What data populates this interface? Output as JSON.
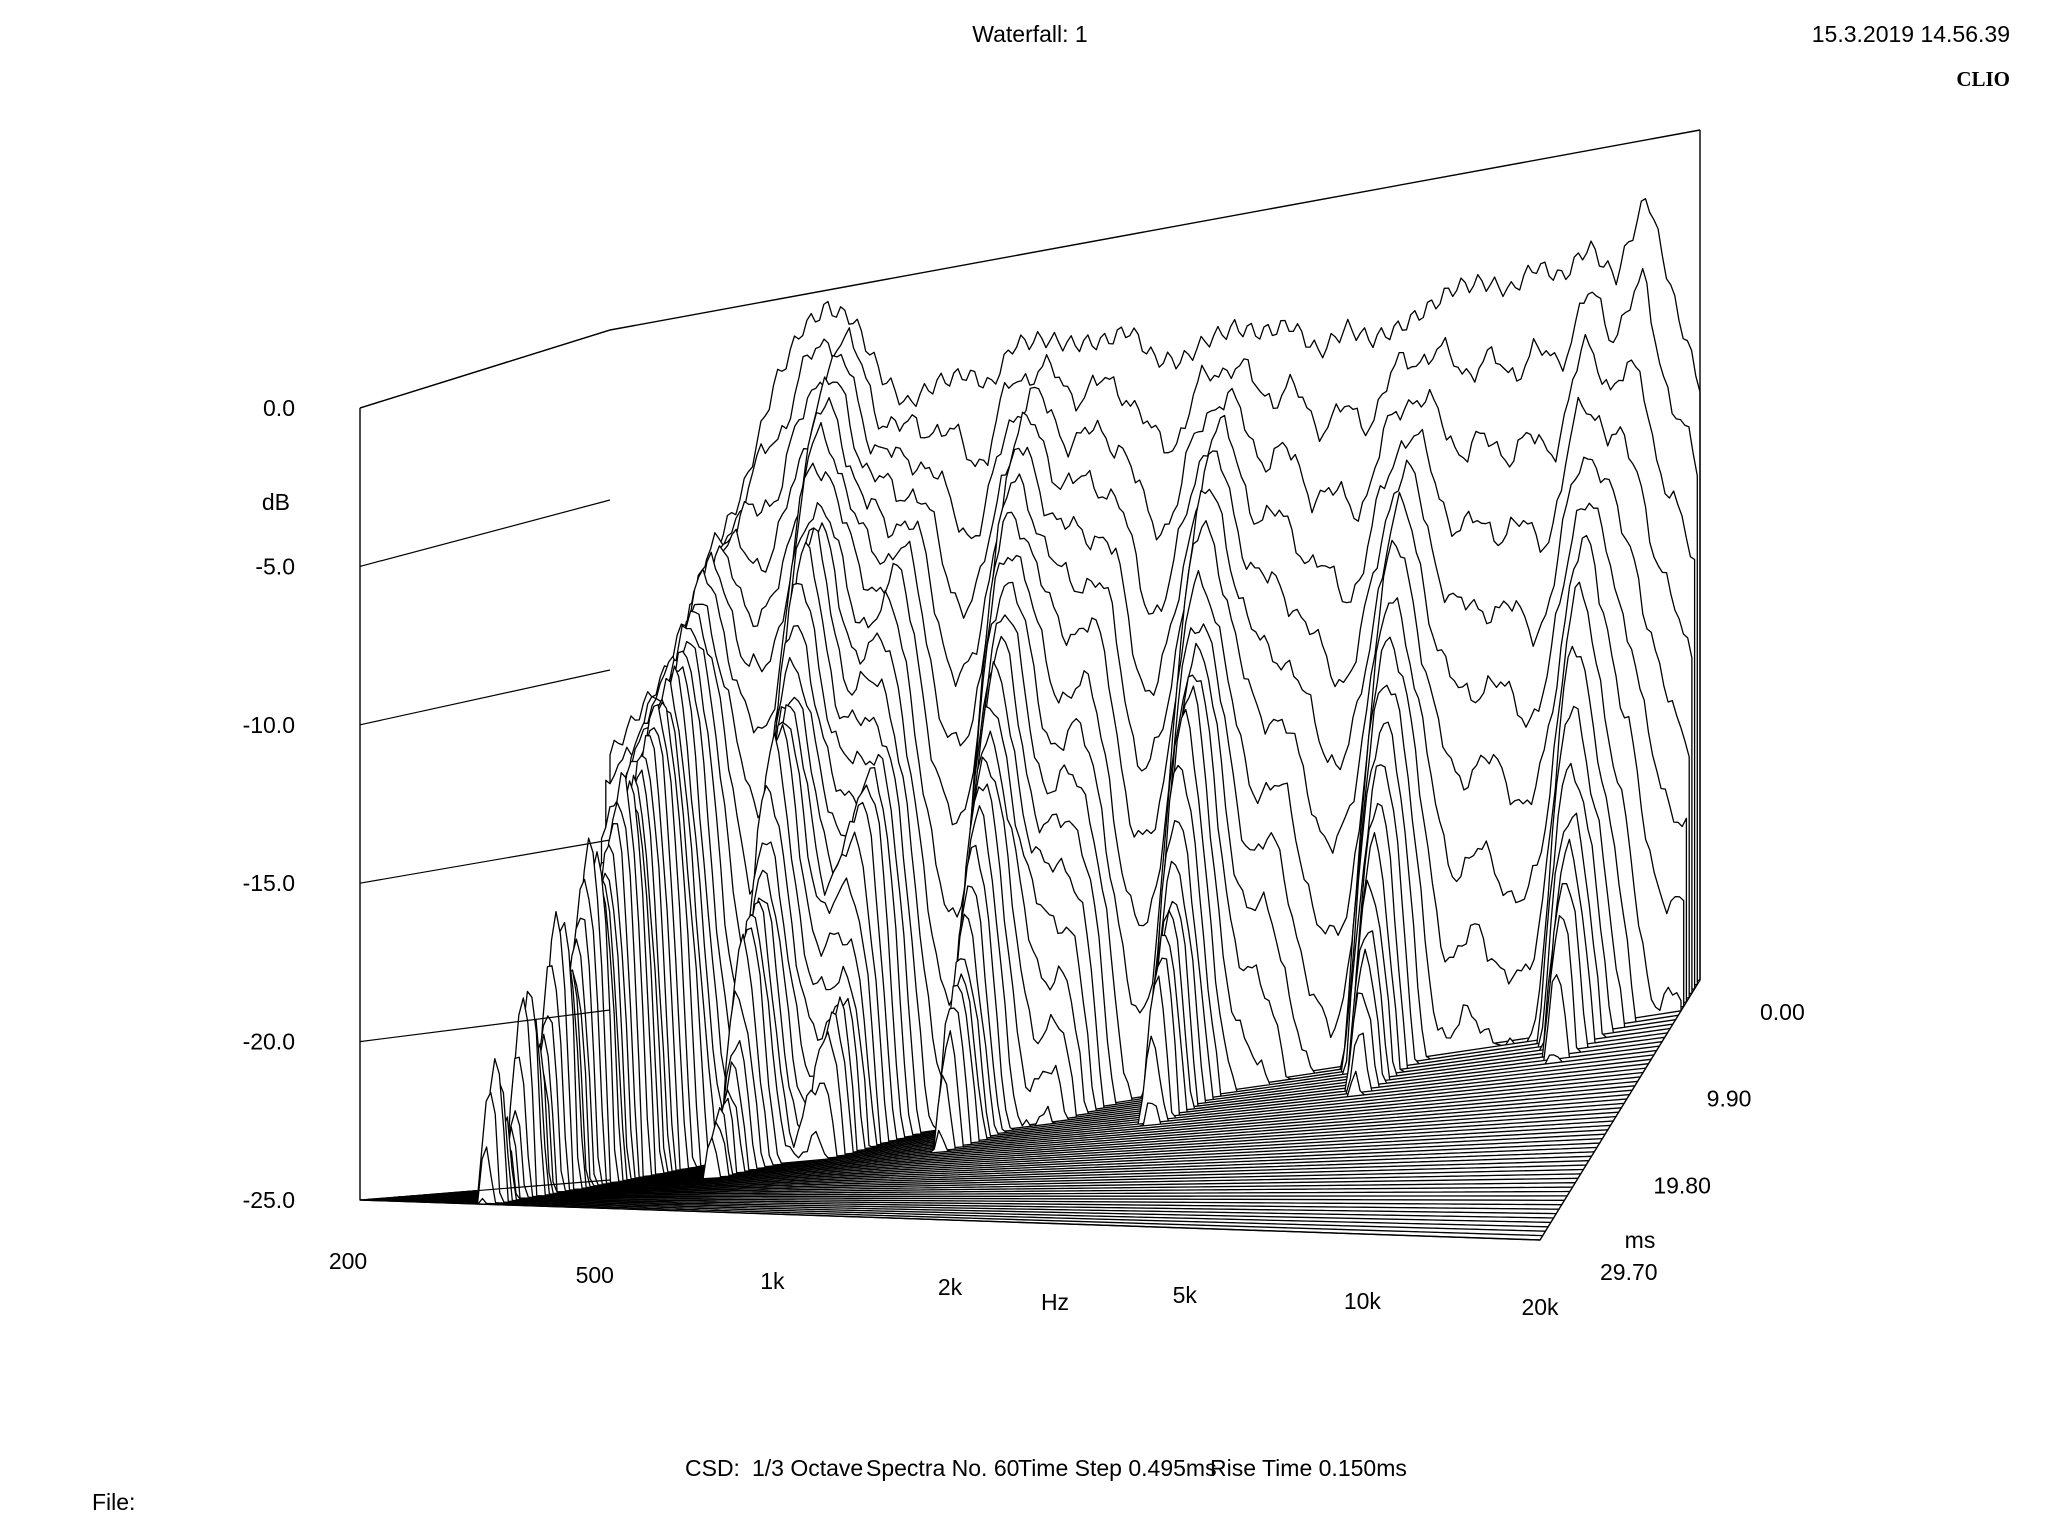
{
  "header": {
    "title": "Waterfall: 1",
    "timestamp": "15.3.2019 14.56.39",
    "brand": "CLIO"
  },
  "footer": {
    "csd_label": "CSD:",
    "smoothing": "1/3 Octave",
    "spectra": "Spectra No. 60",
    "time_step": "Time Step 0.495ms",
    "rise_time": "Rise Time 0.150ms",
    "file_label": "File:"
  },
  "chart_data": {
    "type": "waterfall",
    "y_axis": {
      "label": "dB",
      "ticks": [
        "0.0",
        "-5.0",
        "-10.0",
        "-15.0",
        "-20.0",
        "-25.0"
      ],
      "ylim": [
        -25,
        0
      ]
    },
    "x_axis": {
      "label": "Hz",
      "ticks": [
        "200",
        "500",
        "1k",
        "2k",
        "5k",
        "10k",
        "20k"
      ],
      "xlim": [
        200,
        20000
      ],
      "scale": "log"
    },
    "z_axis": {
      "label": "ms",
      "ticks": [
        "0.00",
        "9.90",
        "19.80",
        "29.70"
      ],
      "zlim": [
        0,
        29.7
      ]
    },
    "spectra_count": 60,
    "time_step_ms": 0.495,
    "rise_time_ms": 0.15,
    "front_spectrum": {
      "freq_hz": [
        200,
        250,
        300,
        350,
        400,
        450,
        500,
        560,
        630,
        700,
        800,
        900,
        1000,
        1100,
        1250,
        1400,
        1600,
        1800,
        2000,
        2240,
        2500,
        2800,
        3150,
        3550,
        4000,
        4500,
        5000,
        5600,
        6300,
        7100,
        8000,
        9000,
        10000,
        11200,
        12500,
        14000,
        16000,
        18000,
        20000
      ],
      "db": [
        -12.5,
        -10.5,
        -7.5,
        -5.5,
        -2.5,
        -1.0,
        -0.5,
        -1.0,
        -2.8,
        -3.8,
        -3.3,
        -3.2,
        -3.7,
        -2.6,
        -2.6,
        -2.9,
        -3.0,
        -2.8,
        -3.8,
        -4.0,
        -3.5,
        -3.3,
        -3.6,
        -3.5,
        -4.5,
        -3.9,
        -4.4,
        -4.2,
        -3.8,
        -3.3,
        -3.3,
        -3.7,
        -3.1,
        -3.6,
        -2.8,
        -3.9,
        -1.6,
        -5.0,
        -7.5
      ]
    }
  }
}
